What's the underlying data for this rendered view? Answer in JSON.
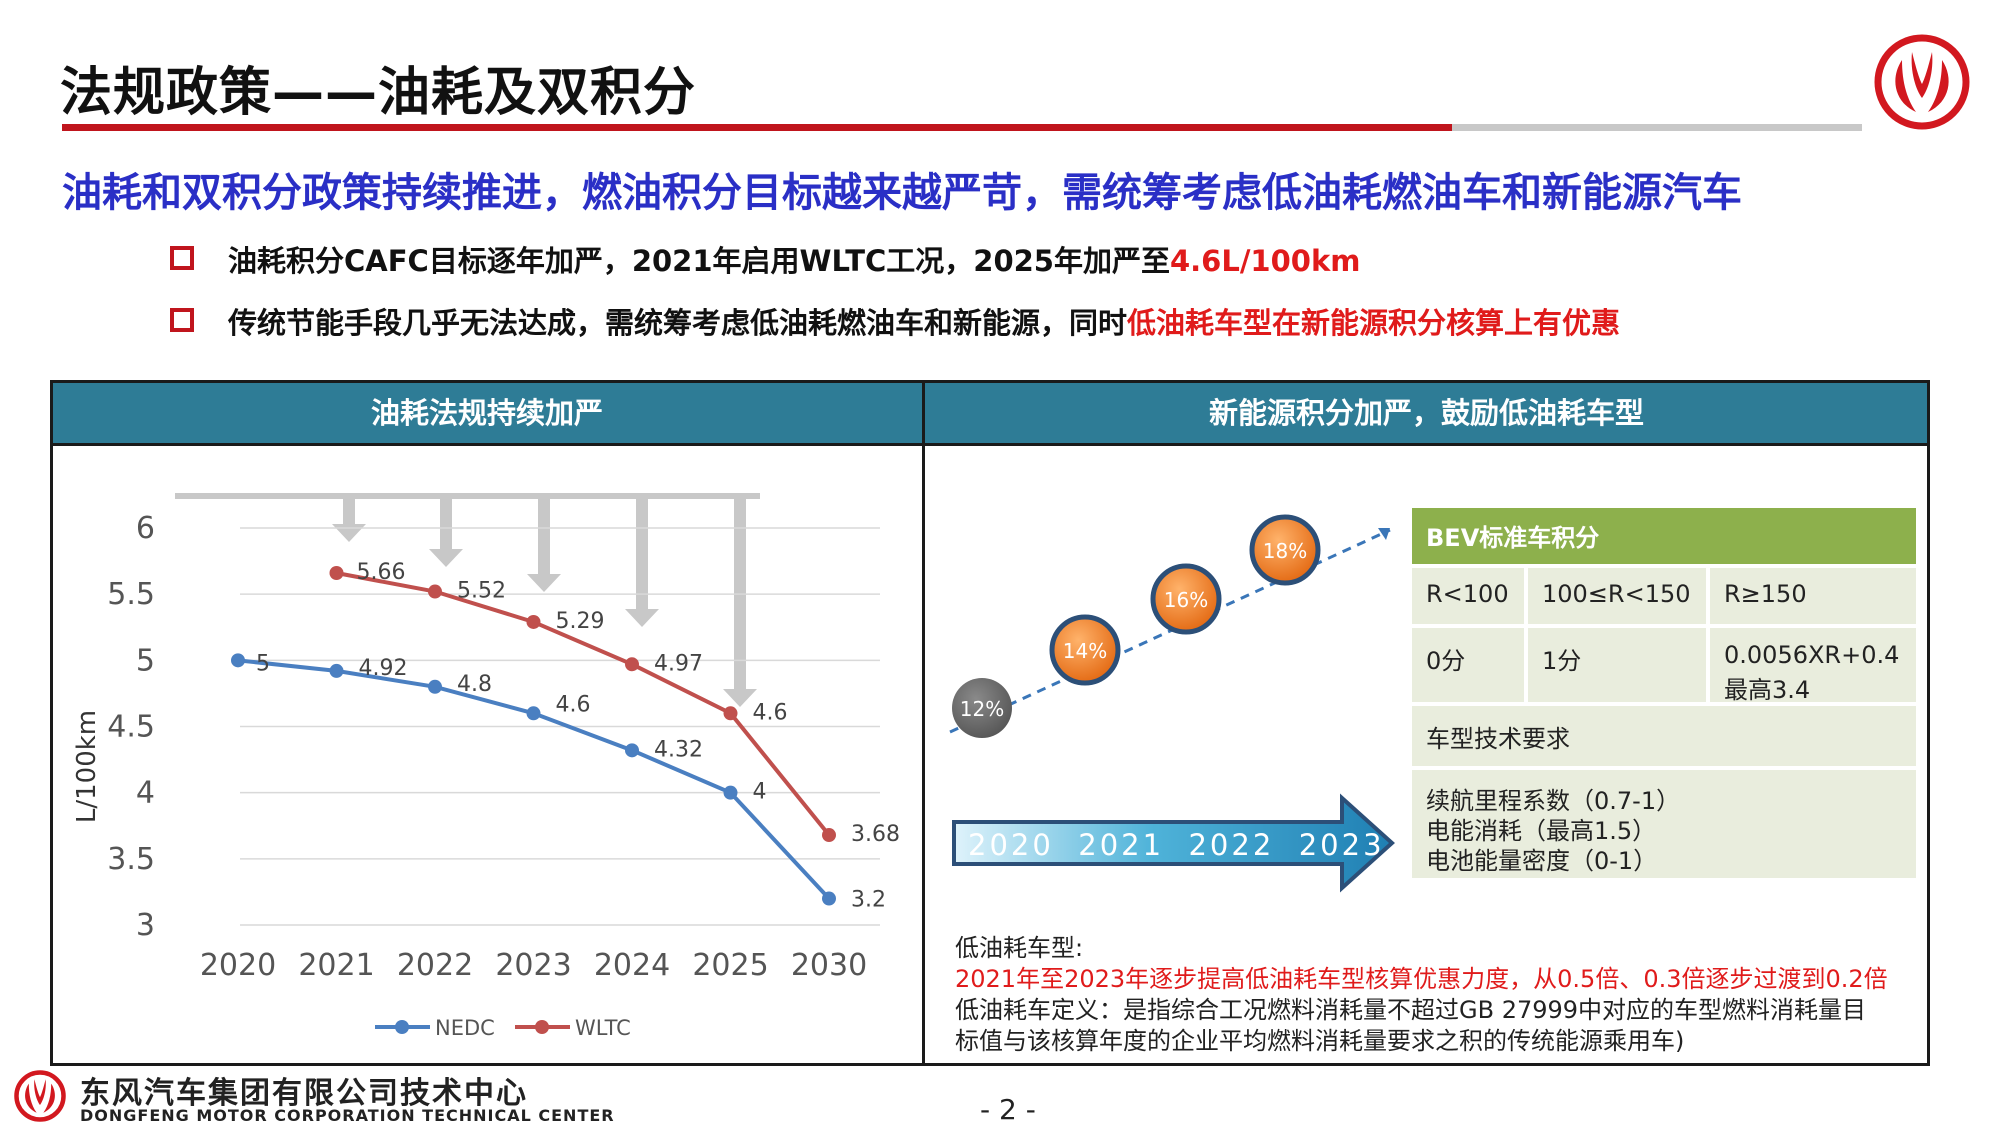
{
  "header": {
    "title": "法规政策——油耗及双积分",
    "brand_color": "#c0151d"
  },
  "headline": "油耗和双积分政策持续推进，燃油积分目标越来越严苛，需统筹考虑低油耗燃油车和新能源汽车",
  "bullets": [
    {
      "text": "油耗积分CAFC目标逐年加严，2021年启用WLTC工况，2025年加严至",
      "highlight": "4.6L/100km"
    },
    {
      "text": "传统节能手段几乎无法达成，需统筹考虑低油耗燃油车和新能源，同时",
      "highlight": "低油耗车型在新能源积分核算上有优惠"
    }
  ],
  "panels": {
    "left_title": "油耗法规持续加严",
    "right_title": "新能源积分加严，鼓励低油耗车型"
  },
  "chart_data": {
    "type": "line",
    "categories": [
      "2020",
      "2021",
      "2022",
      "2023",
      "2024",
      "2025",
      "2030"
    ],
    "ylabel": "L/100km",
    "ylim": [
      3,
      6
    ],
    "yticks": [
      "3",
      "3.5",
      "4",
      "4.5",
      "5",
      "5.5",
      "6"
    ],
    "grid": true,
    "legend": "bottom",
    "series": [
      {
        "name": "NEDC",
        "color": "#4a7fc1",
        "values": [
          5,
          4.92,
          4.8,
          4.6,
          4.32,
          4,
          3.2
        ],
        "labels": [
          "5",
          "4.92",
          "4.8",
          "4.6",
          "4.32",
          "4",
          "3.2"
        ]
      },
      {
        "name": "WLTC",
        "color": "#c0504d",
        "values": [
          null,
          5.66,
          5.52,
          5.29,
          4.97,
          4.6,
          3.68
        ],
        "labels": [
          "",
          "5.66",
          "5.52",
          "5.29",
          "4.97",
          "4.6",
          "3.68"
        ]
      }
    ]
  },
  "bev_credit": {
    "circles": [
      "12%",
      "14%",
      "16%",
      "18%"
    ],
    "years": "2020  2021  2022  2023",
    "table": {
      "title": "BEV标准车积分",
      "range_headers": [
        "R<100",
        "100≤R<150",
        "R≥150"
      ],
      "range_values": [
        "0分",
        "1分",
        "0.0056XR+0.4"
      ],
      "range_value_extra": "最高3.4",
      "req_title": "车型技术要求",
      "requirements": [
        "续航里程系数（0.7-1）",
        "电能消耗（最高1.5）",
        "电池能量密度（0-1）"
      ]
    }
  },
  "low_fuel_note": {
    "label": "低油耗车型:",
    "highlight": "2021年至2023年逐步提高低油耗车型核算优惠力度，从0.5倍、0.3倍逐步过渡到0.2倍",
    "definition_line1": "低油耗车定义：是指综合工况燃料消耗量不超过GB 27999中对应的车型燃料消耗量目",
    "definition_line2": "标值与该核算年度的企业平均燃料消耗量要求之积的传统能源乘用车)"
  },
  "footer": {
    "company_cn": "东风汽车集团有限公司技术中心",
    "company_en": "DONGFENG MOTOR CORPORATION TECHNICAL CENTER",
    "page": "- 2 -"
  }
}
